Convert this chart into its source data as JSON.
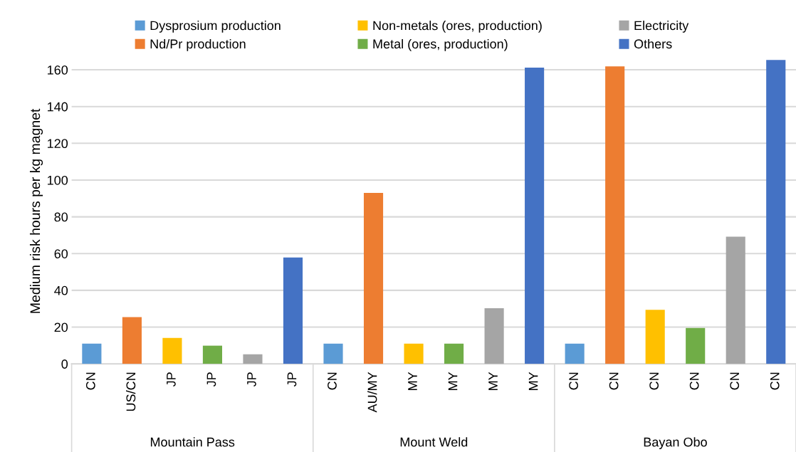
{
  "chart_data": {
    "type": "bar",
    "ylabel": "Medium risk hours per kg magnet",
    "categories": [
      "CN",
      "US/CN",
      "JP",
      "JP",
      "JP",
      "JP",
      "CN",
      "AU/MY",
      "MY",
      "MY",
      "MY",
      "MY",
      "CN",
      "CN",
      "CN",
      "CN",
      "CN",
      "CN"
    ],
    "series": [
      {
        "name": "Dysprosium production",
        "color": "#5b9bd5",
        "values": [
          11,
          null,
          null,
          null,
          null,
          null,
          11,
          null,
          null,
          null,
          null,
          null,
          11,
          null,
          null,
          null,
          null,
          null
        ]
      },
      {
        "name": "Nd/Pr production",
        "color": "#ed7d31",
        "values": [
          null,
          25.4,
          null,
          null,
          null,
          null,
          null,
          93,
          null,
          null,
          null,
          null,
          null,
          161.9,
          null,
          null,
          null,
          null
        ]
      },
      {
        "name": "Non-metals (ores, production)",
        "color": "#ffc000",
        "values": [
          null,
          null,
          14.1,
          null,
          null,
          null,
          null,
          null,
          11,
          null,
          null,
          null,
          null,
          null,
          29.4,
          null,
          null,
          null
        ]
      },
      {
        "name": "Metal (ores, production)",
        "color": "#70ad47",
        "values": [
          null,
          null,
          null,
          9.9,
          null,
          null,
          null,
          null,
          null,
          11,
          null,
          null,
          null,
          null,
          null,
          19.5,
          null,
          null
        ]
      },
      {
        "name": "Electricity",
        "color": "#a5a5a5",
        "values": [
          null,
          null,
          null,
          null,
          5.2,
          null,
          null,
          null,
          null,
          null,
          30.3,
          null,
          null,
          null,
          null,
          null,
          69.2,
          null
        ]
      },
      {
        "name": "Others",
        "color": "#4472c4",
        "values": [
          null,
          null,
          null,
          null,
          null,
          57.9,
          null,
          null,
          null,
          null,
          null,
          161.2,
          null,
          null,
          null,
          null,
          null,
          165.3
        ]
      }
    ],
    "annotations": [
      "Mountain Pass",
      "Mount Weld",
      "Bayan Obo"
    ],
    "ylim": [
      0,
      166
    ],
    "yticks": [
      0,
      20,
      40,
      60,
      80,
      100,
      120,
      140,
      160
    ],
    "grid": "y",
    "legend": "top"
  }
}
